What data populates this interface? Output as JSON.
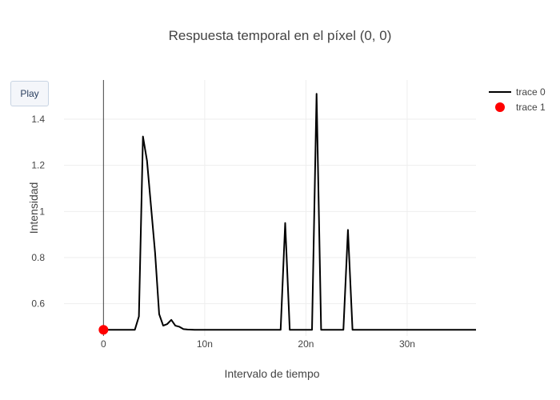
{
  "controls": {
    "play_label": "Play"
  },
  "chart_data": {
    "type": "line",
    "title": "Respuesta temporal en el píxel (0, 0)",
    "xlabel": "Intervalo de tiempo",
    "ylabel": "Intensidad",
    "xlim": [
      -3.9e-09,
      3.68e-08
    ],
    "ylim": [
      0.46,
      1.57
    ],
    "x_ticks": [
      {
        "value": 0,
        "label": "0"
      },
      {
        "value": 1e-08,
        "label": "10n"
      },
      {
        "value": 2e-08,
        "label": "20n"
      },
      {
        "value": 3e-08,
        "label": "30n"
      }
    ],
    "y_ticks": [
      {
        "value": 0.6,
        "label": "0.6"
      },
      {
        "value": 0.8,
        "label": "0.8"
      },
      {
        "value": 1,
        "label": "1"
      },
      {
        "value": 1.2,
        "label": "1.2"
      },
      {
        "value": 1.4,
        "label": "1.4"
      }
    ],
    "grid": true,
    "legend_position": "top-right",
    "series": [
      {
        "name": "trace 0",
        "mode": "lines",
        "color": "#000000",
        "points": [
          [
            0,
            0.487
          ],
          [
            3.1e-09,
            0.487
          ],
          [
            3.5e-09,
            0.545
          ],
          [
            3.9e-09,
            1.325
          ],
          [
            4.3e-09,
            1.22
          ],
          [
            4.7e-09,
            1.02
          ],
          [
            5.1e-09,
            0.82
          ],
          [
            5.5e-09,
            0.555
          ],
          [
            5.9e-09,
            0.505
          ],
          [
            6.3e-09,
            0.512
          ],
          [
            6.7e-09,
            0.53
          ],
          [
            7.1e-09,
            0.505
          ],
          [
            7.5e-09,
            0.5
          ],
          [
            7.9e-09,
            0.49
          ],
          [
            8.3e-09,
            0.488
          ],
          [
            9e-09,
            0.487
          ],
          [
            1.75e-08,
            0.487
          ],
          [
            1.795e-08,
            0.95
          ],
          [
            1.84e-08,
            0.487
          ],
          [
            2.06e-08,
            0.487
          ],
          [
            2.105e-08,
            1.51
          ],
          [
            2.15e-08,
            0.487
          ],
          [
            2.37e-08,
            0.487
          ],
          [
            2.415e-08,
            0.92
          ],
          [
            2.46e-08,
            0.487
          ],
          [
            3.68e-08,
            0.487
          ]
        ]
      },
      {
        "name": "trace 1",
        "mode": "markers",
        "color": "#ff0000",
        "points": [
          [
            0,
            0.487
          ]
        ]
      }
    ]
  }
}
